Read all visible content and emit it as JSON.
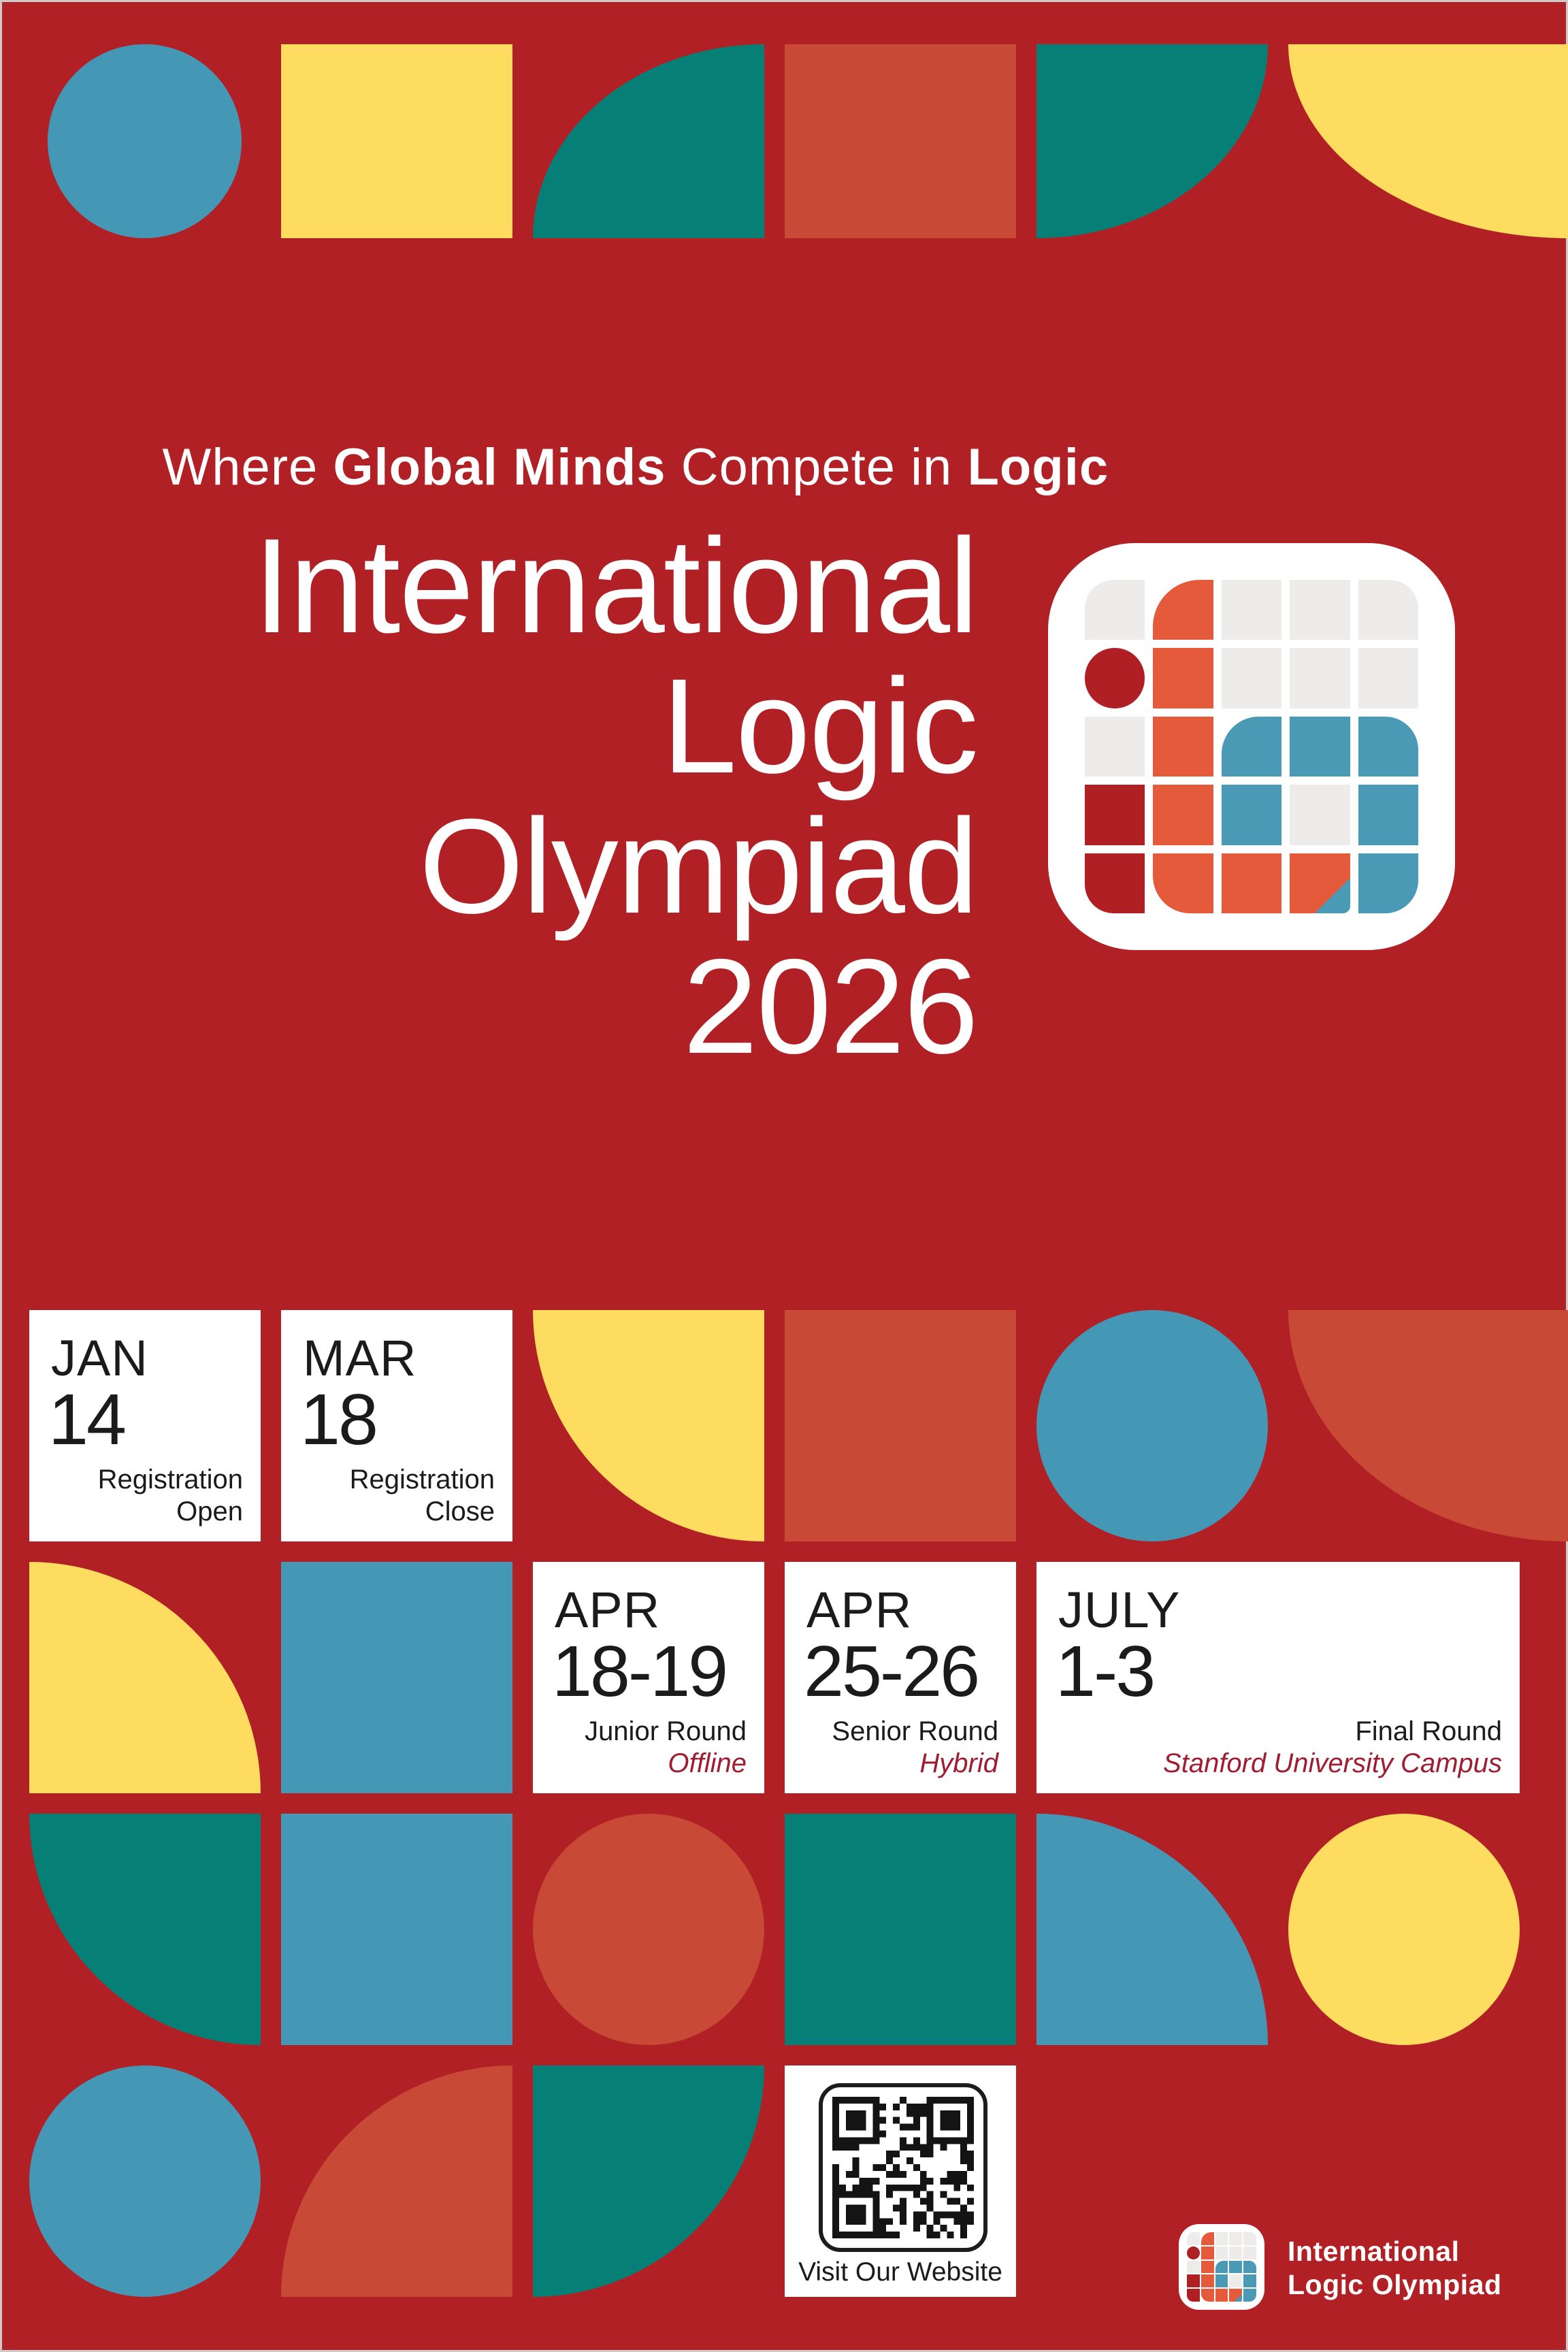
{
  "colors": {
    "bg": "#B12025",
    "rust": "#C74936",
    "teal": "#068077",
    "blue": "#4498B6",
    "yellow": "#FDDC5F",
    "card": "#FFFFFF",
    "ink": "#1B1B1B",
    "accent": "#A01C30",
    "logo_orange": "#E65A3C",
    "logo_blue": "#4A9AB5",
    "logo_gray": "#EDECEB",
    "logo_red": "#B01F24"
  },
  "tagline": {
    "where": "Where ",
    "global_minds": "Global Minds",
    "compete_in": " Compete in ",
    "logic": "Logic"
  },
  "title": {
    "lines": [
      "International",
      "Logic",
      "Olympiad",
      "2026"
    ]
  },
  "logo": {
    "name": "International Logic Olympiad app icon",
    "cells": [
      "g",
      "o",
      "g",
      "g",
      "g",
      "r",
      "o",
      "g",
      "g",
      "g",
      "g",
      "o",
      "b",
      "b",
      "b",
      "r",
      "o",
      "b",
      "g",
      "b",
      "r",
      "o",
      "o",
      "ob",
      "b"
    ]
  },
  "events": [
    {
      "month": "JAN",
      "day": "14",
      "note1": "Registration",
      "note2": "Open",
      "accent": ""
    },
    {
      "month": "MAR",
      "day": "18",
      "note1": "Registration",
      "note2": "Close",
      "accent": ""
    },
    {
      "month": "APR",
      "day": "18-19",
      "note1": "Junior Round",
      "note2": "",
      "accent": "Offline"
    },
    {
      "month": "APR",
      "day": "25-26",
      "note1": "Senior Round",
      "note2": "",
      "accent": "Hybrid"
    },
    {
      "month": "JULY",
      "day": "1-3",
      "note1": "Final Round",
      "note2": "",
      "accent": "Stanford University Campus"
    }
  ],
  "qr": {
    "caption": "Visit Our Website"
  },
  "footer": {
    "line1": "International",
    "line2": "Logic Olympiad"
  }
}
